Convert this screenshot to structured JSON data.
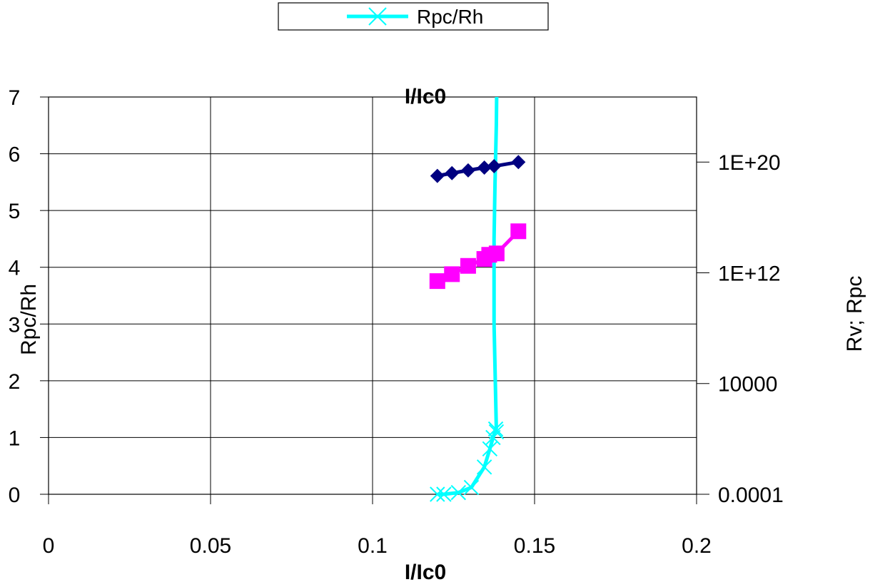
{
  "chart_data": {
    "type": "line",
    "title": "I/Ic0",
    "xlabel": "I/Ic0",
    "ylabel": "Rpc/Rh",
    "y2label": "Rv; Rpc",
    "xlim": [
      0,
      0.2
    ],
    "ylim": [
      0,
      7
    ],
    "y2_scale": "log",
    "x_ticks": [
      "0",
      "0.05",
      "0.1",
      "0.15",
      "0.2"
    ],
    "y_ticks": [
      "0",
      "1",
      "2",
      "3",
      "4",
      "5",
      "6",
      "7"
    ],
    "y2_ticks": [
      "0.0001",
      "10000",
      "1E+12",
      "1E+20"
    ],
    "y2_tick_values": [
      -4,
      4,
      12,
      20
    ],
    "y2_log_range": [
      -4,
      24.7
    ],
    "grid": true,
    "legend_position": "top-center",
    "series": [
      {
        "name": "Rpc/Rh",
        "axis": "left",
        "color": "#00ffff",
        "marker": "x",
        "x": [
          0.12,
          0.122,
          0.1265,
          0.1305,
          0.1345,
          0.1362,
          0.1372,
          0.138,
          0.1382
        ],
        "y": [
          0.0,
          0.0,
          0.03,
          0.12,
          0.48,
          0.8,
          1.0,
          1.15,
          1.1
        ]
      },
      {
        "axis": "right",
        "color": "#000080",
        "marker": "diamond",
        "x": [
          0.12,
          0.1245,
          0.1295,
          0.1345,
          0.1375,
          0.145
        ],
        "y": [
          19.0,
          19.2,
          19.4,
          19.6,
          19.7,
          20.0
        ]
      },
      {
        "axis": "right",
        "color": "#ff00ff",
        "marker": "square",
        "x": [
          0.12,
          0.1245,
          0.1295,
          0.1345,
          0.136,
          0.1383,
          0.145
        ],
        "y": [
          11.4,
          11.9,
          12.5,
          13.0,
          13.3,
          13.4,
          15.0
        ]
      }
    ],
    "rpc_rh_vertical_line": {
      "x": [
        0.1382,
        0.1375,
        0.1375,
        0.1378,
        0.1382,
        0.1383
      ],
      "y": [
        1.15,
        3.0,
        4.5,
        5.5,
        6.5,
        7.0
      ]
    }
  },
  "legend": {
    "items": [
      {
        "label": "Rpc/Rh",
        "color": "#00ffff",
        "marker": "x"
      }
    ]
  }
}
